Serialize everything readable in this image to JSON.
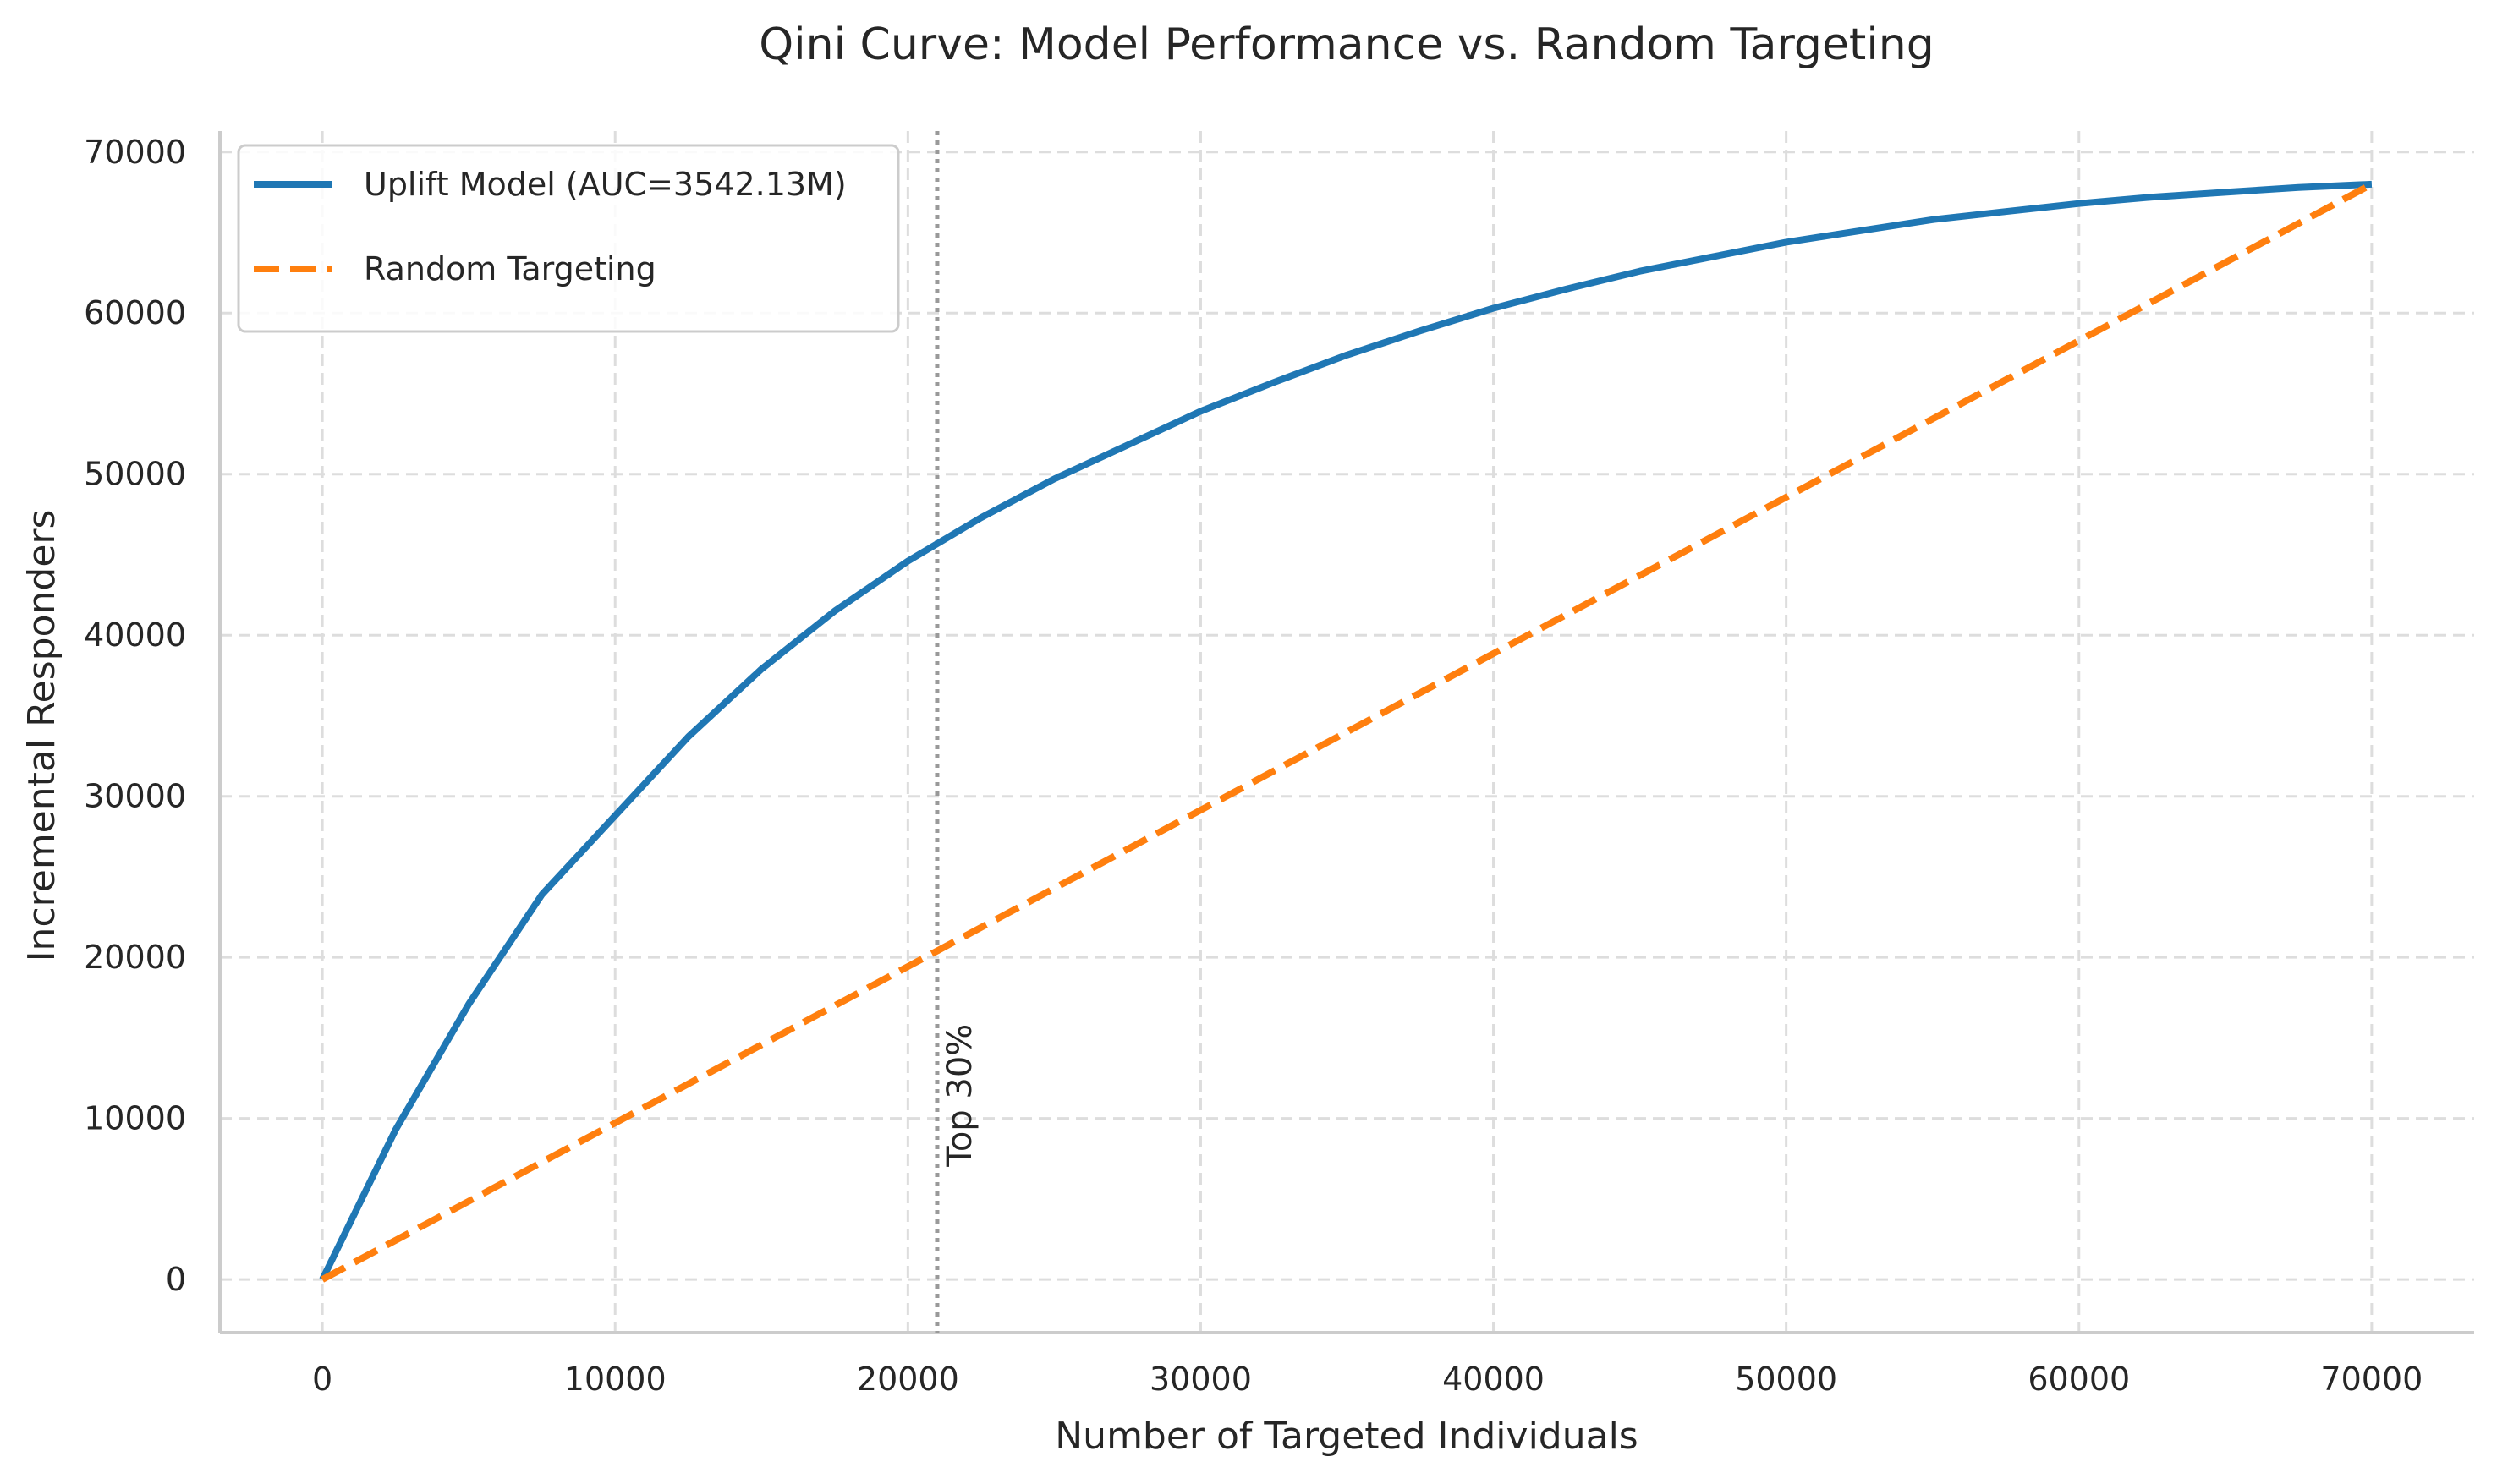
{
  "chart_data": {
    "type": "line",
    "title": "Qini Curve: Model Performance vs. Random Targeting",
    "xlabel": "Number of Targeted Individuals",
    "ylabel": "Incremental Responders",
    "xlim": [
      -3500,
      73500
    ],
    "ylim": [
      -3300,
      71300
    ],
    "xticks": [
      0,
      10000,
      20000,
      30000,
      40000,
      50000,
      60000,
      70000
    ],
    "yticks": [
      0,
      10000,
      20000,
      30000,
      40000,
      50000,
      60000,
      70000
    ],
    "grid": true,
    "legend_position": "top-left",
    "series": [
      {
        "name": "Uplift Model (AUC=3542.13M)",
        "color": "#1f77b4",
        "style": "solid",
        "x": [
          0,
          2500,
          5000,
          7500,
          10000,
          12500,
          15000,
          17500,
          20000,
          22500,
          25000,
          27500,
          30000,
          32500,
          35000,
          37500,
          40000,
          42500,
          45000,
          47500,
          50000,
          52500,
          55000,
          57500,
          60000,
          62500,
          65000,
          67500,
          70000
        ],
        "y": [
          0,
          9300,
          17100,
          23900,
          28800,
          33700,
          37900,
          41500,
          44600,
          47300,
          49700,
          51800,
          53900,
          55700,
          57400,
          58900,
          60300,
          61500,
          62600,
          63500,
          64400,
          65100,
          65800,
          66300,
          66800,
          67200,
          67500,
          67800,
          68000
        ]
      },
      {
        "name": "Random Targeting",
        "color": "#ff7f0e",
        "style": "dashed",
        "x": [
          0,
          70000
        ],
        "y": [
          0,
          68000
        ]
      }
    ],
    "annotations": [
      {
        "type": "vline",
        "x": 21000,
        "color": "#999999",
        "style": "dotted",
        "label": "Top 30%",
        "label_y": 7000
      }
    ]
  }
}
